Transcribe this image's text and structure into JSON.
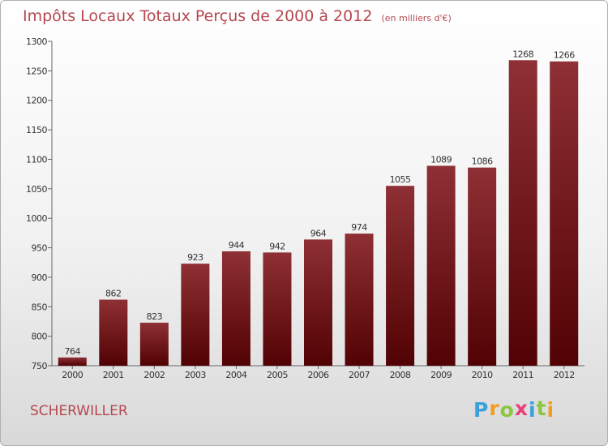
{
  "title": "Impôts Locaux Totaux Perçus de 2000 à 2012",
  "unit_note": "(en milliers d'€)",
  "commune": "SCHERWILLER",
  "logo": {
    "text": "Proxiti",
    "letters": [
      {
        "ch": "P",
        "color": "#3aa0d8"
      },
      {
        "ch": "r",
        "color": "#f39c1e"
      },
      {
        "ch": "o",
        "color": "#8cc63f"
      },
      {
        "ch": "x",
        "color": "#e8417a"
      },
      {
        "ch": "i",
        "color": "#3aa0d8"
      },
      {
        "ch": "t",
        "color": "#8cc63f"
      },
      {
        "ch": "i",
        "color": "#f39c1e"
      }
    ]
  },
  "colors": {
    "bar_top": "#8e3035",
    "bar_bottom": "#520204",
    "text_accent": "#b5474f"
  },
  "chart_data": {
    "type": "bar",
    "categories": [
      "2000",
      "2001",
      "2002",
      "2003",
      "2004",
      "2005",
      "2006",
      "2007",
      "2008",
      "2009",
      "2010",
      "2011",
      "2012"
    ],
    "values": [
      764,
      862,
      823,
      923,
      944,
      942,
      964,
      974,
      1055,
      1089,
      1086,
      1268,
      1266
    ],
    "xlabel": "",
    "ylabel": "",
    "ylim": [
      750,
      1300
    ],
    "yticks": [
      750,
      800,
      850,
      900,
      950,
      1000,
      1050,
      1100,
      1150,
      1200,
      1250,
      1300
    ],
    "grid": false,
    "data_labels": true
  }
}
